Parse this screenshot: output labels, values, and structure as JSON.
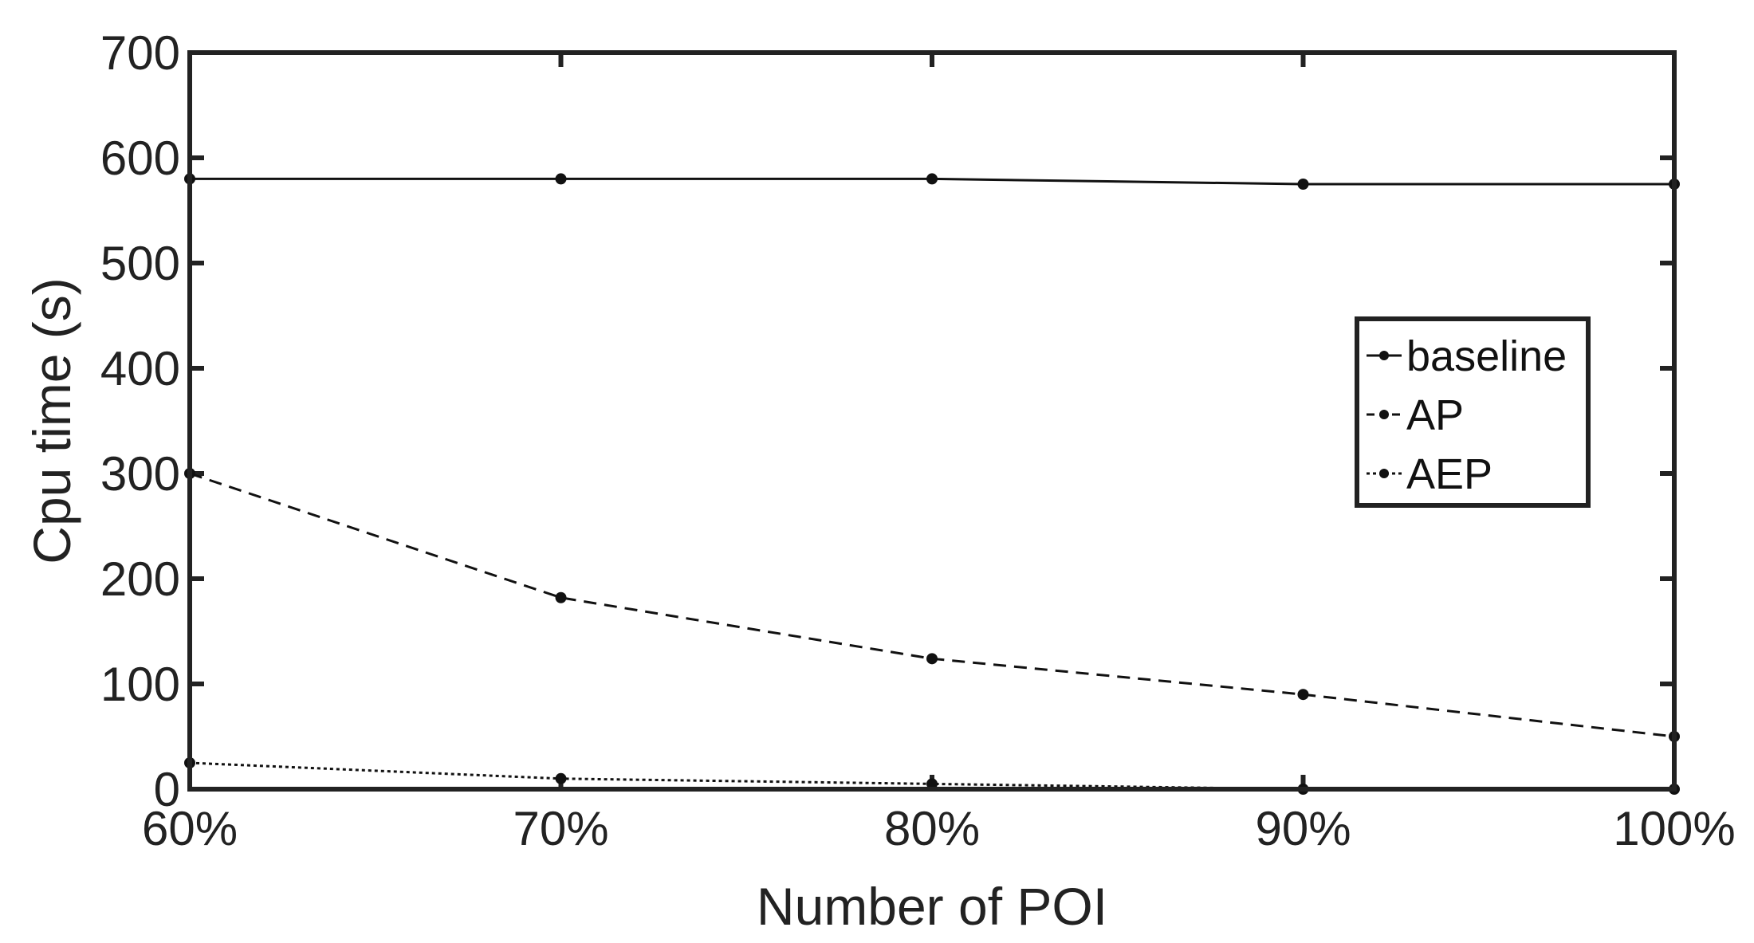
{
  "chart_data": {
    "type": "line",
    "title": "",
    "xlabel": "Number of POI",
    "ylabel": "Cpu time (s)",
    "categories": [
      "60%",
      "70%",
      "80%",
      "90%",
      "100%"
    ],
    "ylim": [
      0,
      700
    ],
    "yticks": [
      0,
      100,
      200,
      300,
      400,
      500,
      600,
      700
    ],
    "grid": false,
    "legend_position": "right",
    "series": [
      {
        "name": "baseline",
        "style": "solid",
        "values": [
          580,
          580,
          580,
          575,
          575
        ]
      },
      {
        "name": "AP",
        "style": "dashed",
        "values": [
          300,
          182,
          124,
          90,
          50
        ]
      },
      {
        "name": "AEP",
        "style": "dotted",
        "values": [
          25,
          10,
          5,
          0,
          0
        ]
      }
    ],
    "colors": {
      "line": "#111111",
      "axis": "#222222"
    }
  }
}
